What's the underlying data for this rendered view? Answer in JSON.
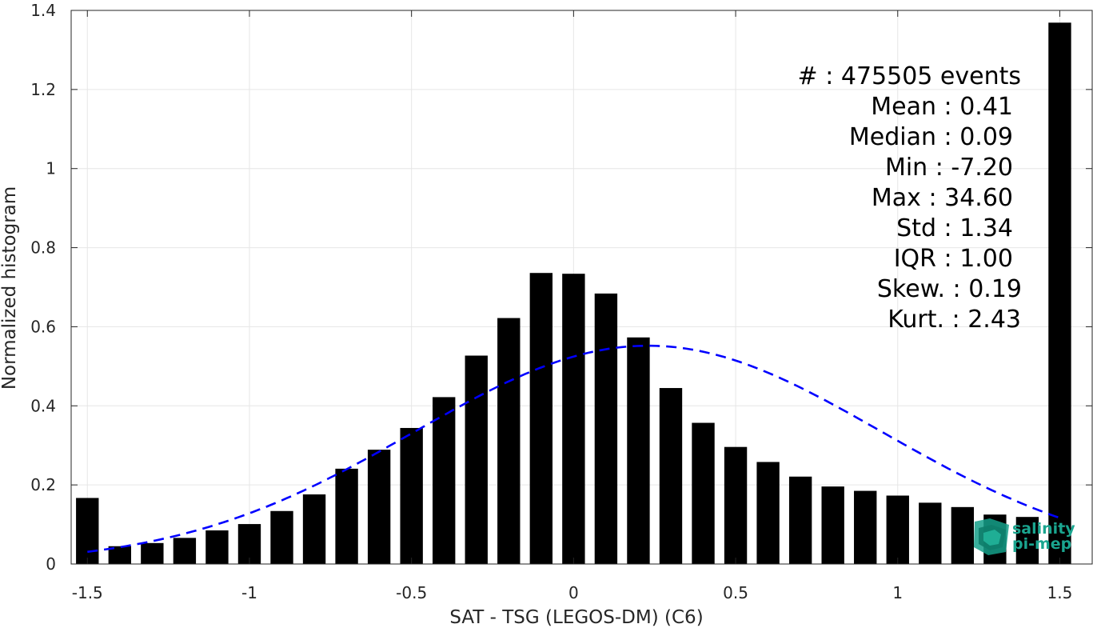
{
  "chart_data": {
    "type": "bar",
    "xlabel": "SAT - TSG (LEGOS-DM) (C6)",
    "ylabel": "Normalized histogram",
    "xlim": [
      -1.55,
      1.6
    ],
    "ylim": [
      0,
      1.4
    ],
    "grid": true,
    "x": [
      -1.5,
      -1.4,
      -1.3,
      -1.2,
      -1.1,
      -1.0,
      -0.9,
      -0.8,
      -0.7,
      -0.6,
      -0.5,
      -0.4,
      -0.3,
      -0.2,
      -0.1,
      0.0,
      0.1,
      0.2,
      0.3,
      0.4,
      0.5,
      0.6,
      0.7,
      0.8,
      0.9,
      1.0,
      1.1,
      1.2,
      1.3,
      1.4,
      1.5
    ],
    "values": [
      0.167,
      0.045,
      0.053,
      0.066,
      0.085,
      0.101,
      0.134,
      0.176,
      0.241,
      0.289,
      0.344,
      0.422,
      0.527,
      0.622,
      0.736,
      0.734,
      0.684,
      0.573,
      0.445,
      0.357,
      0.296,
      0.258,
      0.221,
      0.196,
      0.185,
      0.173,
      0.155,
      0.144,
      0.125,
      0.119,
      1.369
    ],
    "bar_width": 0.07,
    "bar_color": "#000000",
    "xticks": [
      "-1.5",
      "-1",
      "-0.5",
      "0",
      "0.5",
      "1",
      "1.5"
    ],
    "xtick_values": [
      -1.5,
      -1,
      -0.5,
      0,
      0.5,
      1,
      1.5
    ],
    "yticks": [
      "0",
      "0.2",
      "0.4",
      "0.6",
      "0.8",
      "1",
      "1.2",
      "1.4"
    ],
    "ytick_values": [
      0,
      0.2,
      0.4,
      0.6,
      0.8,
      1,
      1.2,
      1.4
    ],
    "fit_curve": {
      "style": "dashed",
      "color": "#0000ff",
      "mean": 0.23,
      "std": 0.72,
      "peak": 0.552,
      "x_range": [
        -1.5,
        1.5
      ]
    },
    "stats": [
      "#  : 475505 events",
      "Mean : 0.41",
      "Median : 0.09",
      "Min : -7.20",
      "Max : 34.60",
      "Std : 1.34",
      "IQR : 1.00",
      "Skew. : 0.19",
      "Kurt. : 2.43"
    ]
  },
  "logo": {
    "line1": "salinity",
    "line2": "pi-mep",
    "color": "#1aa58f"
  }
}
